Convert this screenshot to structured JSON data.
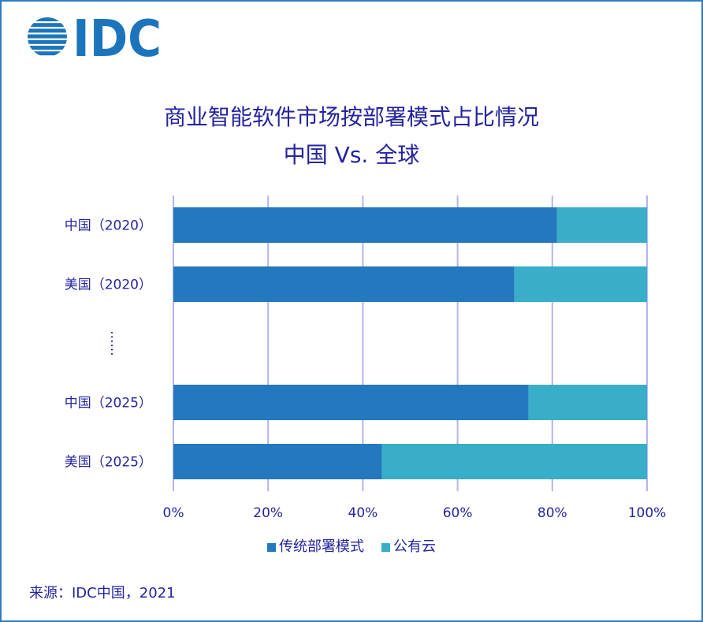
{
  "logo": {
    "text": "IDC"
  },
  "colors": {
    "text": "#2424a0",
    "border": "#2f7ec2",
    "grid": "#b4b4ee",
    "logo": "#1c75bc"
  },
  "source": "来源：IDC中国，2021",
  "chart_data": {
    "type": "bar",
    "orientation": "horizontal",
    "stacked": true,
    "title": "商业智能软件市场按部署模式占比情况",
    "subtitle": "中国 Vs. 全球",
    "categories": [
      "中国（2020）",
      "美国（2020）",
      "......",
      "中国（2025）",
      "美国（2025）"
    ],
    "series": [
      {
        "name": "传统部署模式",
        "color": "#2478be",
        "values": [
          81,
          72,
          null,
          75,
          44
        ]
      },
      {
        "name": "公有云",
        "color": "#38aec9",
        "values": [
          19,
          28,
          null,
          25,
          56
        ]
      }
    ],
    "xlim": [
      0,
      100
    ],
    "x_tick_values": [
      0,
      20,
      40,
      60,
      80,
      100
    ],
    "x_ticks": [
      "0%",
      "20%",
      "40%",
      "60%",
      "80%",
      "100%"
    ],
    "xlabel": "",
    "ylabel": "",
    "grid": true,
    "legend": "bottom"
  }
}
